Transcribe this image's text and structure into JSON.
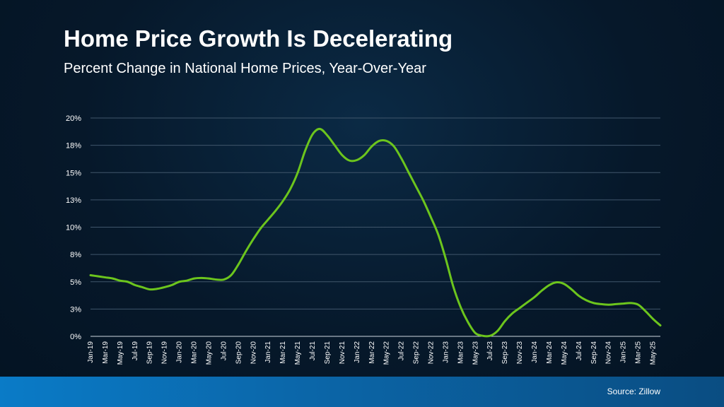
{
  "header": {
    "title": "Home Price Growth Is Decelerating",
    "subtitle": "Percent Change in National Home Prices, Year-Over-Year"
  },
  "footer": {
    "source": "Source: Zillow"
  },
  "colors": {
    "line": "#6cc51d",
    "grid": "#40566b",
    "axis_text": "#ffffff",
    "footer": "#0a6fb6"
  },
  "chart_data": {
    "type": "line",
    "grid": true,
    "ylim": [
      0,
      20
    ],
    "yticks": [
      0,
      2.5,
      5,
      7.5,
      10,
      12.5,
      15,
      17.5,
      20
    ],
    "ytick_labels": [
      "0%",
      "3%",
      "5%",
      "8%",
      "10%",
      "13%",
      "15%",
      "18%",
      "20%"
    ],
    "xtick_labels": [
      "Jan-19",
      "Mar-19",
      "May-19",
      "Jul-19",
      "Sep-19",
      "Nov-19",
      "Jan-20",
      "Mar-20",
      "May-20",
      "Jul-20",
      "Sep-20",
      "Nov-20",
      "Jan-21",
      "Mar-21",
      "May-21",
      "Jul-21",
      "Sep-21",
      "Nov-21",
      "Jan-22",
      "Mar-22",
      "May-22",
      "Jul-22",
      "Sep-22",
      "Nov-22",
      "Jan-23",
      "Mar-23",
      "May-23",
      "Jul-23",
      "Sep-23",
      "Nov-23",
      "Jan-24",
      "Mar-24",
      "May-24",
      "Jul-24",
      "Sep-24",
      "Nov-24",
      "Jan-25",
      "Mar-25",
      "May-25"
    ],
    "x": [
      "Jan-19",
      "Feb-19",
      "Mar-19",
      "Apr-19",
      "May-19",
      "Jun-19",
      "Jul-19",
      "Aug-19",
      "Sep-19",
      "Oct-19",
      "Nov-19",
      "Dec-19",
      "Jan-20",
      "Feb-20",
      "Mar-20",
      "Apr-20",
      "May-20",
      "Jun-20",
      "Jul-20",
      "Aug-20",
      "Sep-20",
      "Oct-20",
      "Nov-20",
      "Dec-20",
      "Jan-21",
      "Feb-21",
      "Mar-21",
      "Apr-21",
      "May-21",
      "Jun-21",
      "Jul-21",
      "Aug-21",
      "Sep-21",
      "Oct-21",
      "Nov-21",
      "Dec-21",
      "Jan-22",
      "Feb-22",
      "Mar-22",
      "Apr-22",
      "May-22",
      "Jun-22",
      "Jul-22",
      "Aug-22",
      "Sep-22",
      "Oct-22",
      "Nov-22",
      "Dec-22",
      "Jan-23",
      "Feb-23",
      "Mar-23",
      "Apr-23",
      "May-23",
      "Jun-23",
      "Jul-23",
      "Aug-23",
      "Sep-23",
      "Oct-23",
      "Nov-23",
      "Dec-23",
      "Jan-24",
      "Feb-24",
      "Mar-24",
      "Apr-24",
      "May-24",
      "Jun-24",
      "Jul-24",
      "Aug-24",
      "Sep-24",
      "Oct-24",
      "Nov-24",
      "Dec-24",
      "Jan-25",
      "Feb-25",
      "Mar-25",
      "Apr-25",
      "May-25",
      "Jun-25"
    ],
    "series": [
      {
        "values": [
          5.6,
          5.5,
          5.4,
          5.3,
          5.1,
          5.0,
          4.7,
          4.5,
          4.3,
          4.35,
          4.5,
          4.7,
          5.0,
          5.1,
          5.3,
          5.35,
          5.3,
          5.2,
          5.2,
          5.6,
          6.6,
          7.8,
          8.9,
          9.9,
          10.7,
          11.5,
          12.4,
          13.5,
          15.0,
          17.0,
          18.5,
          19.0,
          18.4,
          17.5,
          16.6,
          16.1,
          16.15,
          16.6,
          17.4,
          17.9,
          17.9,
          17.4,
          16.3,
          15.0,
          13.7,
          12.4,
          10.9,
          9.3,
          7.1,
          4.6,
          2.7,
          1.3,
          0.3,
          0.05,
          0.05,
          0.5,
          1.4,
          2.1,
          2.6,
          3.1,
          3.6,
          4.2,
          4.7,
          4.95,
          4.8,
          4.3,
          3.7,
          3.3,
          3.05,
          2.95,
          2.9,
          2.95,
          3.0,
          3.05,
          2.9,
          2.3,
          1.6,
          1.0
        ]
      }
    ]
  }
}
